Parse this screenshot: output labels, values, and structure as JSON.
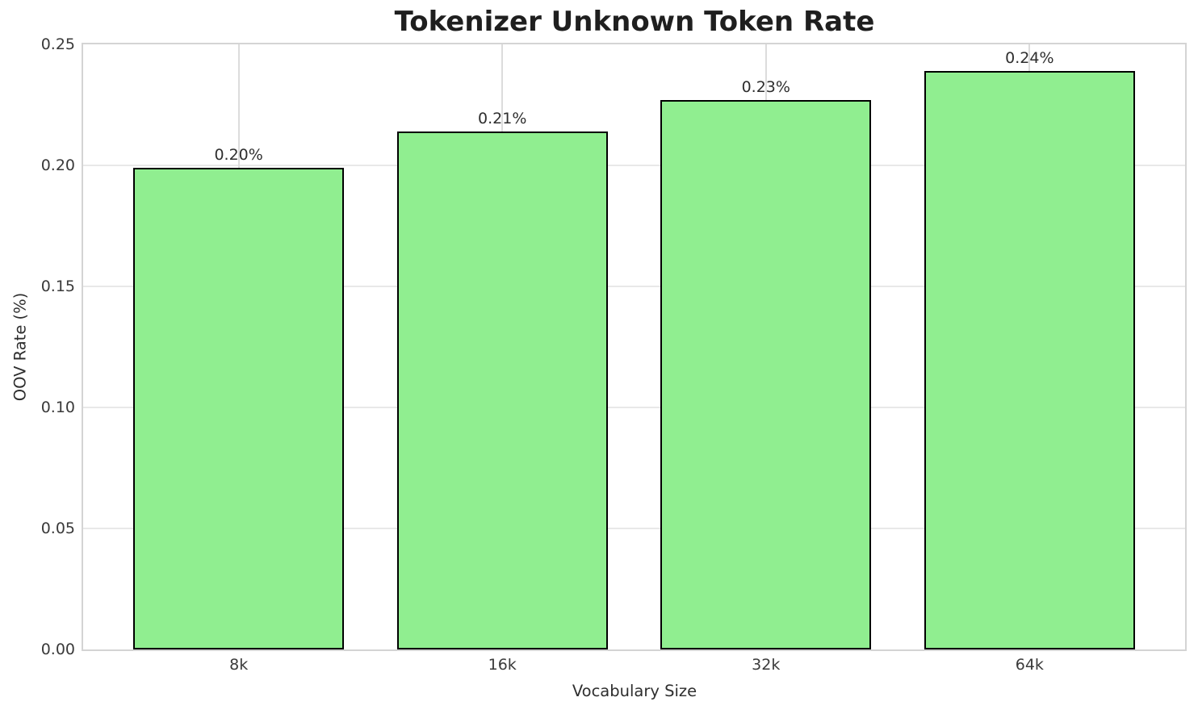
{
  "chart_data": {
    "type": "bar",
    "title": "Tokenizer Unknown Token Rate",
    "xlabel": "Vocabulary Size",
    "ylabel": "OOV Rate (%)",
    "categories": [
      "8k",
      "16k",
      "32k",
      "64k"
    ],
    "values": [
      0.199,
      0.214,
      0.227,
      0.239
    ],
    "bar_labels": [
      "0.20%",
      "0.21%",
      "0.23%",
      "0.24%"
    ],
    "ylim": [
      0,
      0.25
    ],
    "yticks": [
      "0.00",
      "0.05",
      "0.10",
      "0.15",
      "0.20",
      "0.25"
    ],
    "grid": true,
    "legend": false,
    "colors": {
      "bar_fill": "#90EE90",
      "bar_edge": "#000000",
      "grid_h": "#e8e8e8",
      "grid_v": "#dcdcdc",
      "spine": "#d4d4d4",
      "title_text": "#1f1f1f",
      "tick_text": "#3a3a3a",
      "label_text": "#2e2e2e"
    }
  }
}
